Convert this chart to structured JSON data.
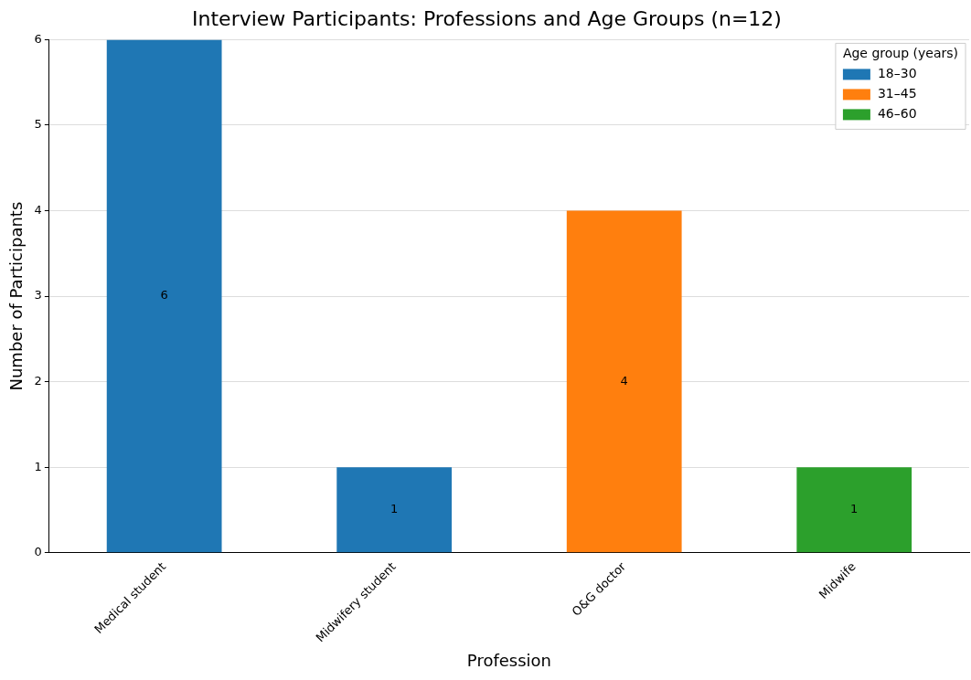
{
  "chart_data": {
    "type": "bar",
    "title": "Interview Participants: Professions and Age Groups (n=12)",
    "xlabel": "Profession",
    "ylabel": "Number of Participants",
    "legend_title": "Age group (years)",
    "categories": [
      "Medical student",
      "Midwifery student",
      "O&G doctor",
      "Midwife"
    ],
    "series": [
      {
        "name": "18–30",
        "color": "#1f77b4",
        "values": [
          6,
          1,
          null,
          null
        ]
      },
      {
        "name": "31–45",
        "color": "#ff7f0e",
        "values": [
          null,
          null,
          4,
          null
        ]
      },
      {
        "name": "46–60",
        "color": "#2ca02c",
        "values": [
          null,
          null,
          null,
          1
        ]
      }
    ],
    "stacked": true,
    "ylim": [
      0,
      6
    ],
    "yticks": [
      0,
      1,
      2,
      3,
      4,
      5,
      6
    ],
    "grid": "y",
    "legend": "top right",
    "data_labels": true
  }
}
